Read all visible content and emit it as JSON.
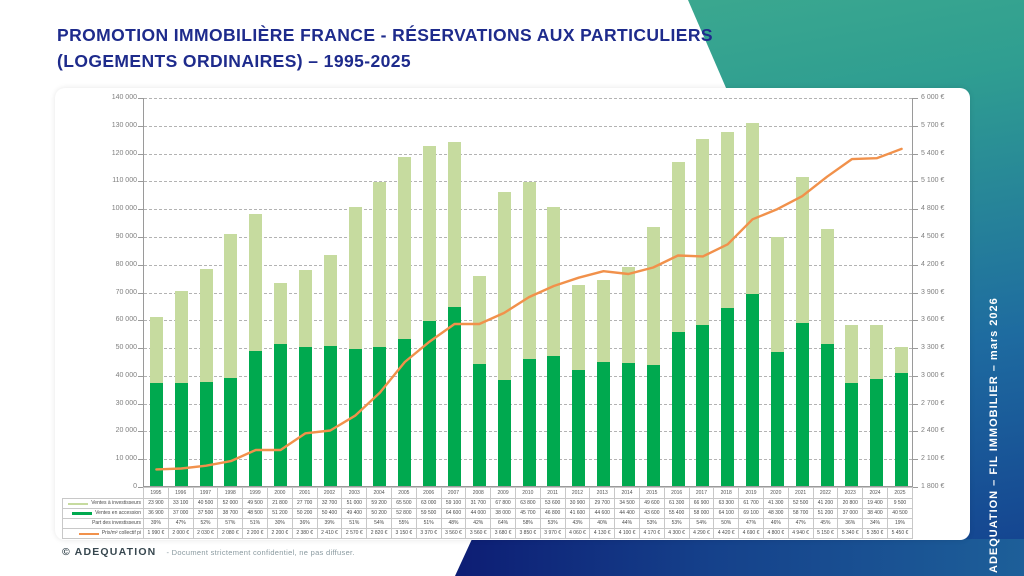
{
  "header": {
    "title_line1": "PROMOTION IMMOBILIÈRE FRANCE - RÉSERVATIONS AUX PARTICULIERS",
    "title_line2": "(LOGEMENTS ORDINAIRES) – 1995-2025"
  },
  "sidebar": {
    "vertical_text": "ADEQUATION – FIL IMMOBILIER – mars 2026"
  },
  "footer": {
    "brand": "© ADEQUATION",
    "note": "- Document strictement confidentiel, ne pas diffuser."
  },
  "colors": {
    "bar_investors": "#c6db9f",
    "bar_accession": "#00a94f",
    "price_line": "#f1914b",
    "title_navy": "#1e2b8c"
  },
  "chart_data": {
    "type": "bar",
    "subtype": "stacked-bars-with-price-line",
    "title": "PROMOTION IMMOBILIÈRE FRANCE - RÉSERVATIONS AUX PARTICULIERS (LOGEMENTS ORDINAIRES) – 1995-2025",
    "xlabel": "",
    "ylabel_left": "",
    "ylabel_right": "",
    "grid": true,
    "legend_position": "table-left",
    "left_axis": {
      "min": 0,
      "max": 140000,
      "step": 10000
    },
    "right_axis": {
      "min": 1800,
      "max": 6000,
      "step": 300,
      "suffix": " €"
    },
    "categories": [
      "1995",
      "1996",
      "1997",
      "1998",
      "1999",
      "2000",
      "2001",
      "2002",
      "2003",
      "2004",
      "2005",
      "2006",
      "2007",
      "2008",
      "2009",
      "2010",
      "2011",
      "2012",
      "2013",
      "2014",
      "2015",
      "2016",
      "2017",
      "2018",
      "2019",
      "2020",
      "2021",
      "2022",
      "2023",
      "2024",
      "2025"
    ],
    "series": [
      {
        "name": "Ventes à investisseurs",
        "role": "bar-stack-top",
        "color": "#c6db9f",
        "values": [
          23900,
          33100,
          40500,
          52000,
          49500,
          21800,
          27700,
          32700,
          51000,
          59200,
          65500,
          63000,
          59100,
          31700,
          67800,
          63800,
          53600,
          30900,
          29700,
          34500,
          49600,
          61300,
          66900,
          63300,
          61700,
          41300,
          52500,
          41200,
          20800,
          19400,
          9500
        ]
      },
      {
        "name": "Ventes en accession",
        "role": "bar-stack-bottom",
        "color": "#00a94f",
        "values": [
          36900,
          37000,
          37500,
          38700,
          48500,
          51200,
          50200,
          50400,
          49400,
          50200,
          52800,
          59500,
          64600,
          44000,
          38000,
          45700,
          46800,
          41600,
          44600,
          44400,
          43600,
          55400,
          58000,
          64100,
          69100,
          48300,
          58700,
          51200,
          37000,
          38400,
          40500
        ]
      },
      {
        "name": "Part des investisseurs",
        "role": "table-row",
        "values": [
          "39%",
          "47%",
          "52%",
          "57%",
          "51%",
          "30%",
          "36%",
          "39%",
          "51%",
          "54%",
          "55%",
          "51%",
          "48%",
          "42%",
          "64%",
          "58%",
          "53%",
          "43%",
          "40%",
          "44%",
          "53%",
          "53%",
          "54%",
          "50%",
          "47%",
          "46%",
          "47%",
          "45%",
          "36%",
          "34%",
          "19%"
        ]
      },
      {
        "name": "Prix/m² collectif pi",
        "role": "line",
        "color": "#f1914b",
        "unit": "€",
        "values": [
          1990,
          2000,
          2030,
          2080,
          2200,
          2200,
          2380,
          2410,
          2570,
          2820,
          3150,
          3370,
          3560,
          3560,
          3680,
          3850,
          3970,
          4060,
          4130,
          4100,
          4170,
          4300,
          4290,
          4420,
          4690,
          4800,
          4940,
          5150,
          5340,
          5350,
          5450
        ]
      }
    ]
  }
}
